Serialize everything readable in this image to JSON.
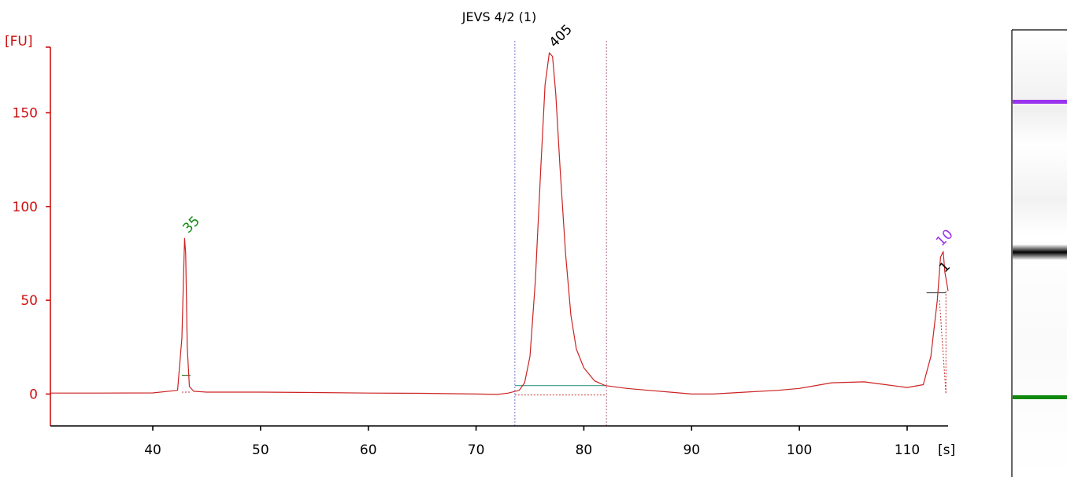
{
  "chart_data": {
    "type": "line",
    "title": "JEVS 4/2 (1)",
    "ylabel": "[FU]",
    "xlabel": "[s]",
    "xlim": [
      30.5,
      113.8
    ],
    "ylim": [
      -17,
      185
    ],
    "xticks": [
      40,
      50,
      60,
      70,
      80,
      90,
      100,
      110
    ],
    "xtick_labels": [
      "40",
      "50",
      "60",
      "70",
      "80",
      "90",
      "100",
      "110"
    ],
    "yticks": [
      0,
      50,
      100,
      150
    ],
    "ytick_labels": [
      "0",
      "50",
      "100",
      "150"
    ],
    "grid": false,
    "series": [
      {
        "x": [
          30.5,
          35,
          40,
          42.3,
          42.7,
          42.95,
          43.05,
          43.2,
          43.4,
          43.8,
          45,
          50,
          55,
          60,
          65,
          70,
          72,
          73,
          74,
          74.5,
          75,
          75.5,
          76,
          76.4,
          76.8,
          77.1,
          77.4,
          77.8,
          78.3,
          78.8,
          79.3,
          80,
          81,
          82,
          84,
          86,
          88,
          90,
          92,
          95,
          98,
          100,
          103,
          106,
          108,
          110,
          111.5,
          112.2,
          112.8,
          113.1,
          113.35,
          113.5,
          113.8
        ],
        "y": [
          0.5,
          0.5,
          0.6,
          2,
          30,
          83,
          75,
          25,
          4,
          1.5,
          1,
          1,
          0.8,
          0.5,
          0.4,
          0,
          -0.2,
          0.5,
          2,
          6,
          20,
          60,
          120,
          165,
          182,
          180,
          160,
          120,
          75,
          42,
          24,
          14,
          7,
          4.5,
          3,
          2,
          1,
          0,
          0,
          1,
          2,
          3,
          6,
          6.5,
          5,
          3.5,
          5,
          20,
          50,
          73,
          76,
          65,
          55
        ]
      }
    ],
    "peaks": [
      {
        "x": 43.0,
        "y": 83,
        "label": "35",
        "color": "#0f8a0f"
      },
      {
        "x": 77.0,
        "y": 182,
        "label": "405",
        "color": "#000000"
      },
      {
        "x": 112.9,
        "y": 76,
        "label": "10",
        "color": "#9933ee"
      },
      {
        "x": 113.2,
        "y": 62,
        "label": "1",
        "color": "#000000"
      }
    ],
    "region_markers": [
      73.6,
      82.1
    ],
    "baseline_segments": [
      {
        "x": [
          42.7,
          43.5
        ],
        "y": 10,
        "color": "#2a7a2a"
      },
      {
        "x": 73.6,
        "x2": 82.1,
        "y": 4.5,
        "color": "#3a9a8a"
      },
      {
        "x": [
          111.8,
          113.6
        ],
        "y": 54,
        "color": "#444444"
      }
    ],
    "colors": {
      "trace": "#cc2222",
      "axis": "#cc1111",
      "marker_green": "#0f8a0f",
      "marker_purple": "#9933ee"
    }
  },
  "gel": {
    "bands": [
      {
        "name": "upper-marker",
        "color": "#9933ee"
      },
      {
        "name": "sample",
        "color": "#111111"
      },
      {
        "name": "lower-marker",
        "color": "#0f8a0f"
      }
    ]
  }
}
